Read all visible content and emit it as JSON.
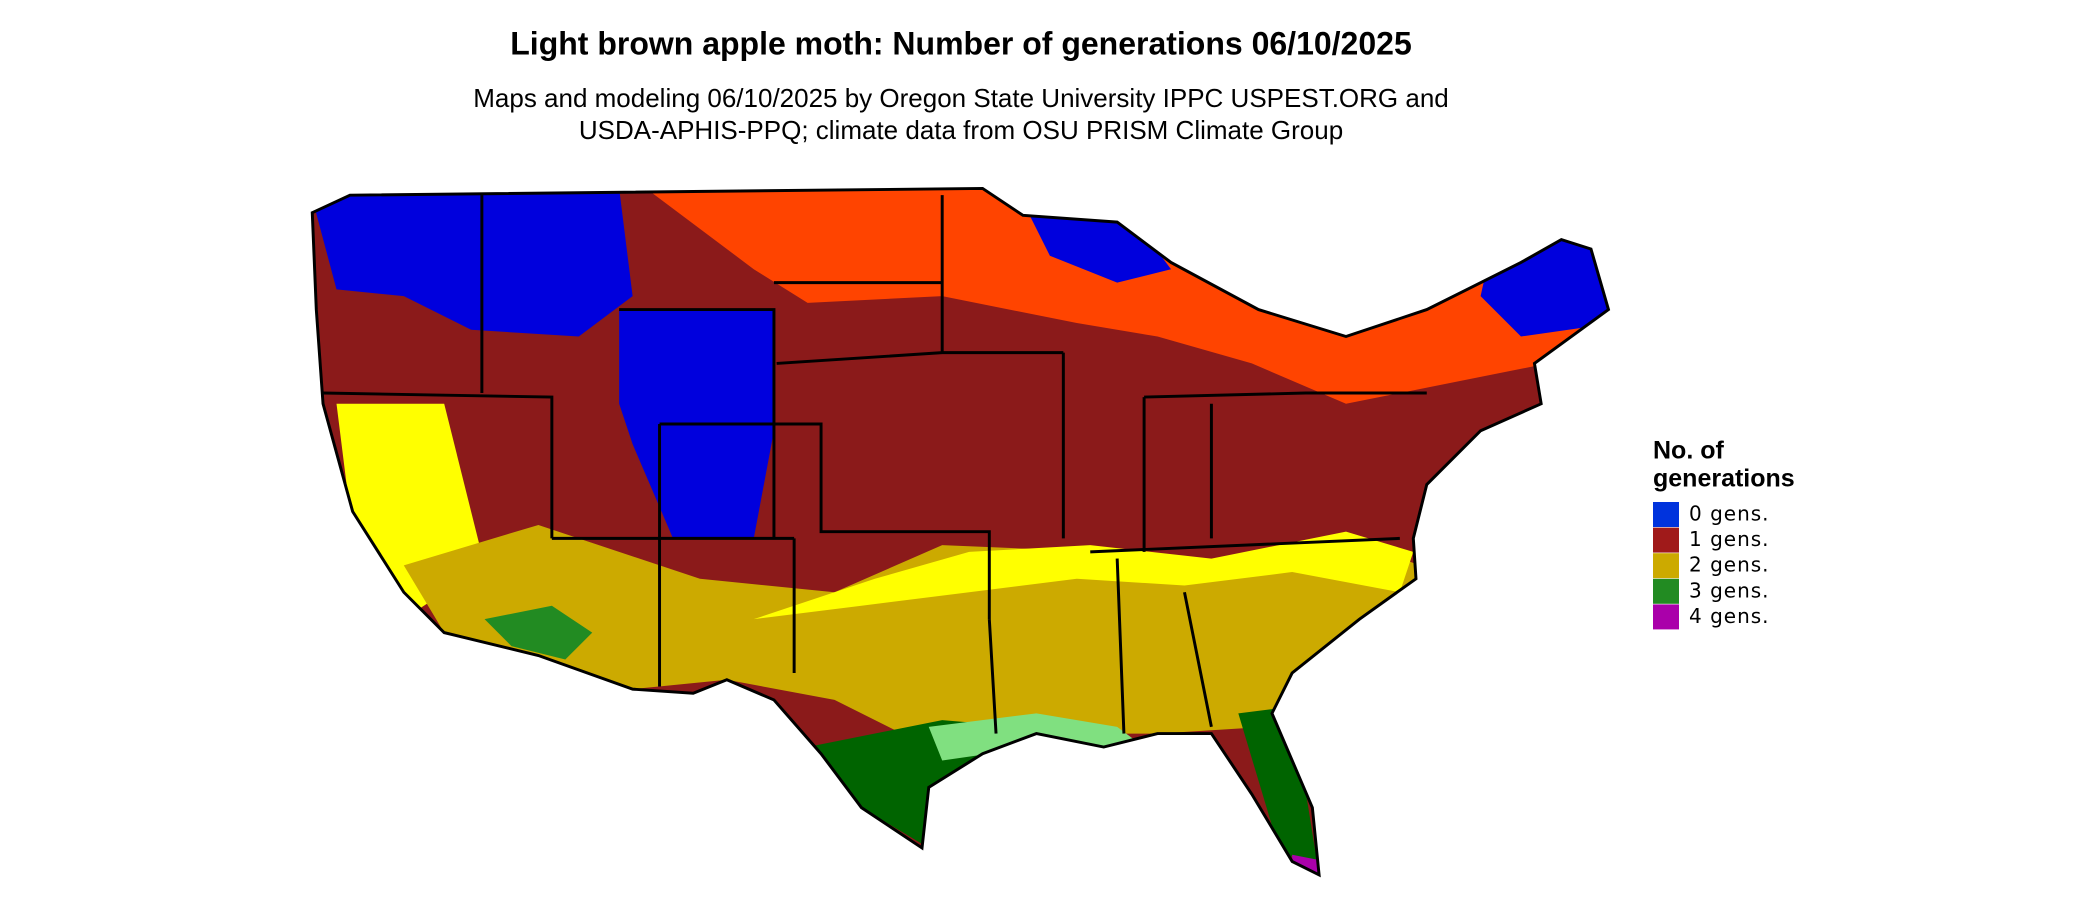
{
  "title": "Light brown apple moth: Number of generations 06/10/2025",
  "subtitle": [
    "Maps and modeling 06/10/2025 by Oregon State University IPPC USPEST.ORG and",
    "USDA-APHIS-PPQ; climate data from OSU PRISM Climate Group"
  ],
  "legend": {
    "title": [
      "No. of",
      "generations"
    ],
    "items": [
      {
        "label": "0 gens.",
        "color": "#0033dd"
      },
      {
        "label": "1 gens.",
        "color": "#a01a1a"
      },
      {
        "label": "2 gens.",
        "color": "#ccaa00"
      },
      {
        "label": "3 gens.",
        "color": "#228b22"
      },
      {
        "label": "4 gens.",
        "color": "#aa00aa"
      }
    ]
  }
}
